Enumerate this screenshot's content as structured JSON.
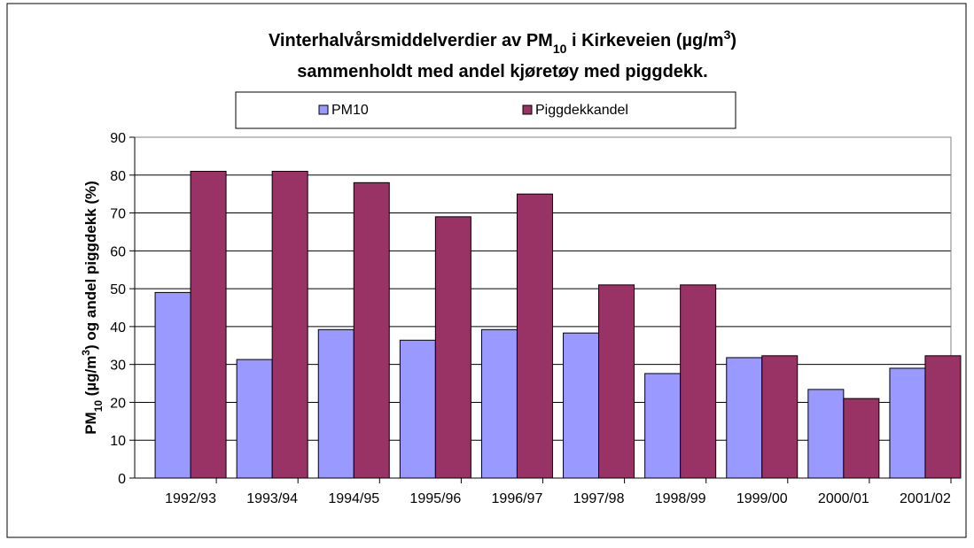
{
  "chart_data": {
    "type": "bar",
    "title": {
      "line1": [
        "Vinterhalvårsmiddelverdier av PM",
        "10",
        " i Kirkeveien (µg/m",
        "3",
        ")"
      ],
      "line2": "sammenholdt med andel kjøretøy med piggdekk."
    },
    "ylabel": [
      "PM",
      "10",
      " (µg/m",
      "3",
      ") og andel piggdekk (%)"
    ],
    "categories": [
      "1992/93",
      "1993/94",
      "1994/95",
      "1995/96",
      "1996/97",
      "1997/98",
      "1998/99",
      "1999/00",
      "2000/01",
      "2001/02"
    ],
    "series": [
      {
        "name": "PM10",
        "color": "#9999ff",
        "values": [
          49,
          31.3,
          39.2,
          36.4,
          39.2,
          38.3,
          27.6,
          31.8,
          23.4,
          29
        ]
      },
      {
        "name": "Piggdekkandel",
        "color": "#993366",
        "values": [
          81,
          81,
          78,
          69,
          75,
          51,
          51,
          32.3,
          21,
          32.3
        ]
      }
    ],
    "ylim": [
      0,
      90
    ],
    "yticks": [
      0,
      10,
      20,
      30,
      40,
      50,
      60,
      70,
      80,
      90
    ],
    "grid": true,
    "legend": "top"
  }
}
